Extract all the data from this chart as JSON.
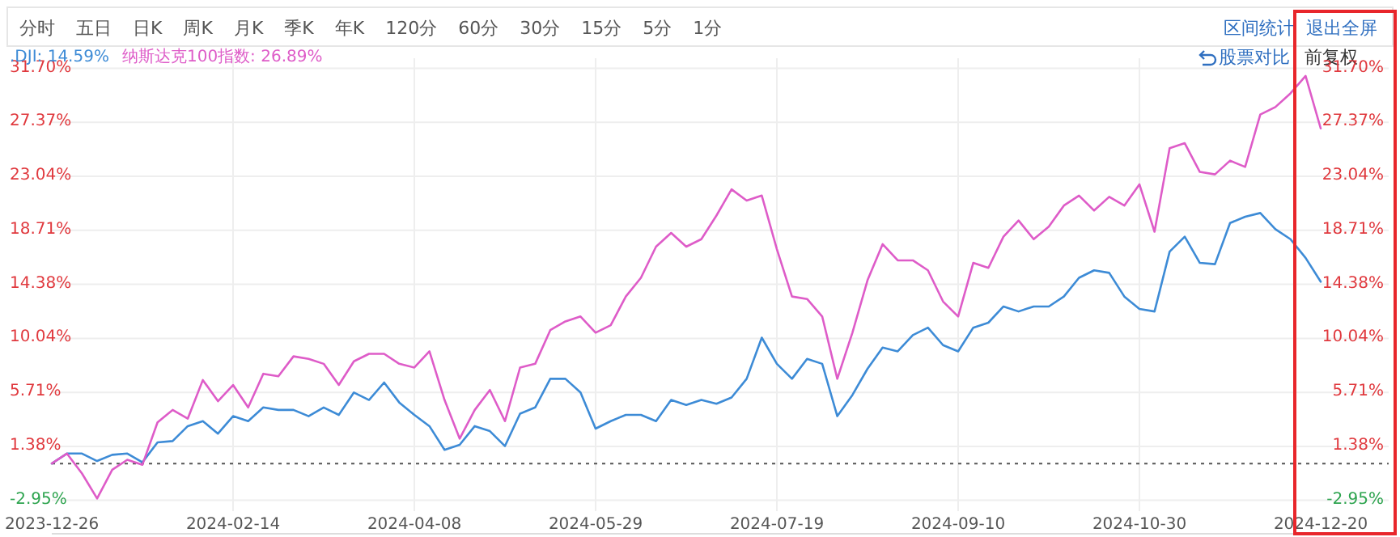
{
  "chart_data": {
    "type": "line",
    "categories": [
      "2023-12-26",
      null,
      null,
      null,
      null,
      null,
      null,
      null,
      null,
      null,
      null,
      null,
      "2024-02-14",
      null,
      null,
      null,
      null,
      null,
      null,
      null,
      null,
      null,
      null,
      null,
      "2024-04-08",
      null,
      null,
      null,
      null,
      null,
      null,
      null,
      null,
      null,
      null,
      null,
      "2024-05-29",
      null,
      null,
      null,
      null,
      null,
      null,
      null,
      null,
      null,
      null,
      null,
      "2024-07-19",
      null,
      null,
      null,
      null,
      null,
      null,
      null,
      null,
      null,
      null,
      null,
      "2024-09-10",
      null,
      null,
      null,
      null,
      null,
      null,
      null,
      null,
      null,
      null,
      null,
      "2024-10-30",
      null,
      null,
      null,
      null,
      null,
      null,
      null,
      null,
      null,
      null,
      null,
      "2024-12-20"
    ],
    "series": [
      {
        "name": ".DJI: 14.59%",
        "color": "#3d8bd6",
        "values": [
          0,
          0.8,
          0.8,
          0.2,
          0.7,
          0.8,
          0.1,
          1.7,
          1.8,
          3.0,
          3.4,
          2.4,
          3.8,
          3.4,
          4.5,
          4.3,
          4.3,
          3.8,
          4.5,
          3.9,
          5.7,
          5.1,
          6.5,
          4.9,
          3.9,
          3.0,
          1.1,
          1.5,
          3.0,
          2.6,
          1.4,
          4.0,
          4.5,
          6.8,
          6.8,
          5.7,
          2.8,
          3.4,
          3.9,
          3.9,
          3.4,
          5.1,
          4.7,
          5.1,
          4.8,
          5.3,
          6.8,
          10.1,
          8.0,
          6.8,
          8.4,
          8.0,
          3.8,
          5.5,
          7.6,
          9.3,
          9.0,
          10.3,
          10.9,
          9.5,
          9.0,
          10.9,
          11.3,
          12.6,
          12.2,
          12.6,
          12.6,
          13.4,
          14.9,
          15.5,
          15.3,
          13.4,
          12.4,
          12.2,
          17.0,
          18.2,
          16.1,
          16.0,
          19.3,
          19.8,
          20.1,
          18.8,
          18.0,
          16.5,
          14.59
        ]
      },
      {
        "name": "纳斯达克100指数: 26.89%",
        "color": "#de5cc8",
        "values": [
          0,
          0.8,
          -0.8,
          -2.8,
          -0.5,
          0.3,
          -0.1,
          3.3,
          4.3,
          3.6,
          6.7,
          5.0,
          6.3,
          4.5,
          7.2,
          7.0,
          8.6,
          8.4,
          8.0,
          6.3,
          8.2,
          8.8,
          8.8,
          8.0,
          7.7,
          9.0,
          5.1,
          2.0,
          4.3,
          5.9,
          3.4,
          7.7,
          8.0,
          10.7,
          11.4,
          11.8,
          10.5,
          11.1,
          13.4,
          14.9,
          17.4,
          18.5,
          17.4,
          18.0,
          19.9,
          22.0,
          21.1,
          21.5,
          17.2,
          13.4,
          13.2,
          11.8,
          6.8,
          10.5,
          14.7,
          17.6,
          16.3,
          16.3,
          15.5,
          13.0,
          11.8,
          16.1,
          15.7,
          18.2,
          19.5,
          18.0,
          19.0,
          20.7,
          21.5,
          20.3,
          21.4,
          20.7,
          22.4,
          18.6,
          25.3,
          25.7,
          23.4,
          23.2,
          24.3,
          23.8,
          28.0,
          28.6,
          29.7,
          31.1,
          26.89
        ]
      }
    ],
    "ylim": [
      -3.3,
      32.0
    ],
    "yticks": [
      {
        "value": 31.7,
        "label": "31.70%"
      },
      {
        "value": 27.37,
        "label": "27.37%"
      },
      {
        "value": 23.04,
        "label": "23.04%"
      },
      {
        "value": 18.71,
        "label": "18.71%"
      },
      {
        "value": 14.38,
        "label": "14.38%"
      },
      {
        "value": 10.04,
        "label": "10.04%"
      },
      {
        "value": 5.71,
        "label": "5.71%"
      },
      {
        "value": 1.38,
        "label": "1.38%"
      },
      {
        "value": -2.95,
        "label": "-2.95%"
      }
    ],
    "y2lim": [
      -3.3,
      32.0
    ],
    "y2ticks": [
      {
        "value": 31.7,
        "label": "31.70%"
      },
      {
        "value": 27.37,
        "label": "27.37%"
      },
      {
        "value": 23.04,
        "label": "23.04%"
      },
      {
        "value": 18.71,
        "label": "18.71%"
      },
      {
        "value": 14.38,
        "label": "14.38%"
      },
      {
        "value": 10.04,
        "label": "10.04%"
      },
      {
        "value": 5.71,
        "label": "5.71%"
      },
      {
        "value": 1.38,
        "label": "1.38%"
      },
      {
        "value": -2.95,
        "label": "-2.95%"
      }
    ],
    "ref_lines": [
      {
        "axis": "y",
        "value": 0,
        "color": "#555555",
        "line_style": "dotted"
      }
    ],
    "grid": true,
    "legend": "top left",
    "marker": "none",
    "line_style": "solid",
    "annotations": [
      "分时",
      "五日",
      "日K",
      "周K",
      "月K",
      "季K",
      "年K",
      "120分",
      "60分",
      "30分",
      "15分",
      "5分",
      "1分",
      "区间统计",
      "退出全屏",
      "股票对比",
      "前复权"
    ]
  }
}
